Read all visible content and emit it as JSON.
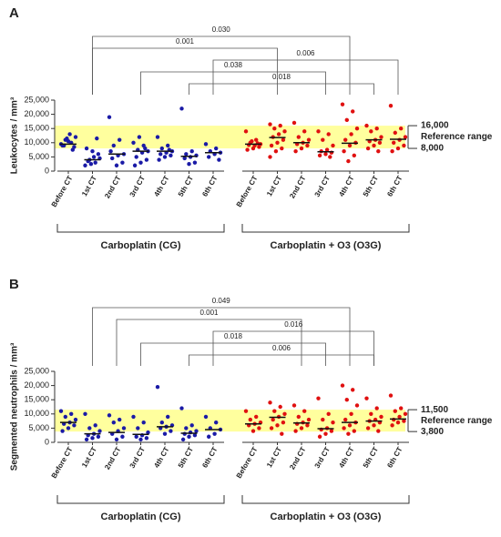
{
  "chart_data": [
    {
      "type": "strip",
      "panel": "A",
      "ylabel": "Leukocytes / mm³",
      "ylim": [
        0,
        25000
      ],
      "yticks": [
        0,
        {
          "value": 5000,
          "label": "5,000"
        },
        {
          "value": 10000,
          "label": "10,000"
        },
        {
          "value": 15000,
          "label": "15,000"
        },
        {
          "value": 20000,
          "label": "20,000"
        },
        {
          "value": 25000,
          "label": "25,000"
        }
      ],
      "categories": [
        "Before CT",
        "1st CT",
        "2nd CT",
        "3rd CT",
        "4th CT",
        "5th CT",
        "6th CT",
        "Before CT",
        "1st CT",
        "2nd CT",
        "3rd CT",
        "4th CT",
        "5th CT",
        "6th CT"
      ],
      "reference": {
        "low": {
          "value": 8000,
          "label": "8,000"
        },
        "high": {
          "value": 16000,
          "label": "16,000"
        },
        "label": "Reference range",
        "color": "#ffff9e"
      },
      "series": [
        {
          "name": "Carboplatin (CG)",
          "color": "#1a1aa6",
          "start": 0,
          "values": [
            [
              9500,
              10000,
              11000,
              12000,
              13000,
              9000,
              8500,
              10500,
              9000,
              7500,
              11500
            ],
            [
              2000,
              3000,
              4000,
              4500,
              5000,
              3500,
              6000,
              7000,
              8000,
              11500,
              2500
            ],
            [
              19000,
              11000,
              9000,
              6000,
              5500,
              4500,
              3000,
              2000,
              7000
            ],
            [
              10000,
              9000,
              7500,
              7000,
              6500,
              5000,
              4000,
              3000,
              2000,
              8000,
              12000
            ],
            [
              12000,
              9000,
              8000,
              7000,
              6500,
              6000,
              5500,
              5000,
              4000,
              7500
            ],
            [
              22000,
              7000,
              6000,
              5500,
              5000,
              4500,
              3000,
              2500
            ],
            [
              9500,
              8000,
              7000,
              6500,
              6000,
              5000,
              4000
            ]
          ],
          "medians": [
            9500,
            4000,
            6000,
            7000,
            7000,
            5200,
            6500
          ]
        },
        {
          "name": "Carboplatin + O3 (O3G)",
          "color": "#e01010",
          "start": 7,
          "values": [
            [
              14000,
              11000,
              10000,
              9500,
              9000,
              9200,
              8500,
              8000,
              7500,
              9800,
              10500
            ],
            [
              16500,
              16000,
              15000,
              14000,
              13000,
              12000,
              11000,
              10000,
              9000,
              8000,
              7000,
              5000
            ],
            [
              17000,
              14000,
              12000,
              11000,
              10000,
              9500,
              9000,
              8000,
              7000
            ],
            [
              14000,
              13000,
              11000,
              9000,
              7500,
              7000,
              6500,
              6000,
              5500,
              5000
            ],
            [
              23500,
              21000,
              18000,
              15000,
              13000,
              11000,
              10000,
              9000,
              7000,
              5500,
              3500
            ],
            [
              16000,
              15000,
              14000,
              12000,
              11000,
              10500,
              10000,
              9000,
              8000,
              7000
            ],
            [
              23000,
              15000,
              13500,
              12000,
              11000,
              10000,
              9000,
              8000,
              7000
            ]
          ],
          "medians": [
            9500,
            11800,
            10000,
            6800,
            9800,
            11000,
            11200
          ]
        }
      ],
      "comparisons": [
        {
          "from": 1,
          "to": 11,
          "p": {
            "value": 0.03,
            "label": "0.030"
          }
        },
        {
          "from": 1,
          "to": 8,
          "p": 0.001
        },
        {
          "from": 6,
          "to": 13,
          "p": 0.006
        },
        {
          "from": 3,
          "to": 10,
          "p": 0.038
        },
        {
          "from": 5,
          "to": 12,
          "p": 0.018
        }
      ]
    },
    {
      "type": "strip",
      "panel": "B",
      "ylabel": "Segmented neutrophils / mm³",
      "ylim": [
        0,
        25000
      ],
      "yticks": [
        0,
        {
          "value": 5000,
          "label": "5,000"
        },
        {
          "value": 10000,
          "label": "10,000"
        },
        {
          "value": 15000,
          "label": "15,000"
        },
        {
          "value": 20000,
          "label": "20,000"
        },
        {
          "value": 25000,
          "label": "25,000"
        }
      ],
      "categories": [
        "Before CT",
        "1st CT",
        "2nd CT",
        "3rd CT",
        "4th CT",
        "5th CT",
        "6th CT",
        "Before CT",
        "1st CT",
        "2nd CT",
        "3rd CT",
        "4th CT",
        "5th CT",
        "6th CT"
      ],
      "reference": {
        "low": {
          "value": 3800,
          "label": "3,800"
        },
        "high": {
          "value": 11500,
          "label": "11,500"
        },
        "label": "Reference range",
        "color": "#ffff9e"
      },
      "series": [
        {
          "name": "Carboplatin (CG)",
          "color": "#1a1aa6",
          "start": 0,
          "values": [
            [
              11000,
              10000,
              9000,
              8000,
              7000,
              6500,
              6000,
              5000,
              4000
            ],
            [
              10000,
              6000,
              5000,
              4000,
              3000,
              2500,
              2000,
              1500,
              1000
            ],
            [
              9500,
              8000,
              7000,
              5000,
              4000,
              3000,
              2000,
              1000
            ],
            [
              9000,
              7000,
              5000,
              3500,
              2500,
              2000,
              1500,
              1000
            ],
            [
              19500,
              9000,
              7000,
              6000,
              5500,
              5000,
              4000,
              3000
            ],
            [
              12000,
              6000,
              5000,
              4000,
              3500,
              3000,
              2500,
              2000,
              1000
            ],
            [
              9000,
              7000,
              5000,
              4500,
              3000,
              2000
            ]
          ],
          "medians": [
            7000,
            3000,
            3500,
            2800,
            5500,
            3200,
            4500
          ]
        },
        {
          "name": "Carboplatin + O3 (O3G)",
          "color": "#e01010",
          "start": 7,
          "values": [
            [
              11000,
              9000,
              8000,
              7000,
              6500,
              6000,
              5000,
              4000
            ],
            [
              14000,
              12500,
              11000,
              10000,
              9000,
              8000,
              7000,
              6000,
              5000,
              3000
            ],
            [
              13000,
              11000,
              9000,
              8000,
              7000,
              6500,
              6000,
              5000,
              4000
            ],
            [
              15500,
              10000,
              8000,
              7000,
              5000,
              4500,
              4000,
              3000,
              2000
            ],
            [
              20000,
              18500,
              15000,
              13000,
              10000,
              8000,
              7000,
              6000,
              5000,
              4000,
              3000
            ],
            [
              15500,
              12000,
              10000,
              9000,
              8000,
              7500,
              7000,
              6000,
              5000,
              4000
            ],
            [
              16500,
              12000,
              11000,
              10000,
              9000,
              8000,
              7500,
              7000,
              6000
            ]
          ],
          "medians": [
            6500,
            8800,
            6800,
            4800,
            7000,
            7500,
            8200
          ]
        }
      ],
      "comparisons": [
        {
          "from": 1,
          "to": 11,
          "p": 0.049
        },
        {
          "from": 2,
          "to": 9,
          "p": 0.001
        },
        {
          "from": 6,
          "to": 12,
          "p": 0.016
        },
        {
          "from": 3,
          "to": 10,
          "p": 0.018
        },
        {
          "from": 5,
          "to": 12,
          "p": 0.006
        }
      ]
    }
  ]
}
